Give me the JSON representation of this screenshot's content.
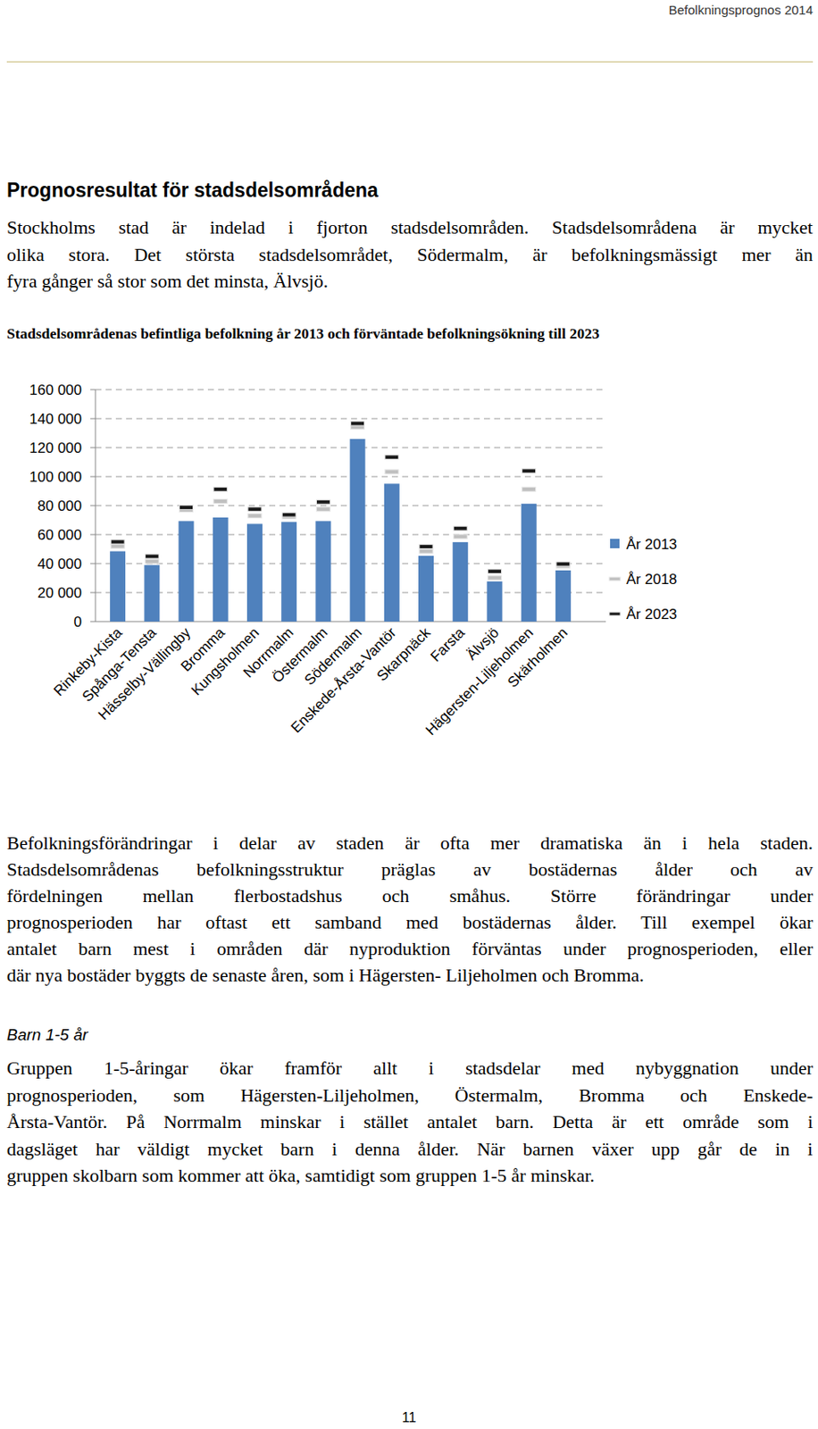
{
  "page": {
    "running_header": "Befolkningsprognos 2014",
    "heading": "Prognosresultat för stadsdelsområdena",
    "intro": [
      "Stockholms stad är indelad i fjorton stadsdelsområden. Stadsdelsområdena är mycket",
      "olika stora. Det största stadsdelsområdet, Södermalm, är befolkningsmässigt mer än",
      "fyra gånger så stor som det minsta, Älvsjö."
    ],
    "paragraph": [
      "Befolkningsförändringar i delar av staden är ofta mer dramatiska än i hela staden.",
      "Stadsdelsområdenas befolkningsstruktur präglas av bostädernas ålder och av",
      "fördelningen mellan flerbostadshus och småhus. Större förändringar under",
      "prognosperioden har oftast ett samband med bostädernas ålder. Till exempel ökar",
      "antalet barn mest i områden där nyproduktion förväntas under prognosperioden, eller",
      "där nya bostäder byggts de senaste åren, som i Hägersten- Liljeholmen och Bromma."
    ],
    "subheading": "Barn 1-5 år",
    "subheading_text": [
      "Gruppen 1-5-åringar ökar framför allt i stadsdelar med nybyggnation under",
      "prognosperioden, som Hägersten-Liljeholmen, Östermalm, Bromma och Enskede-",
      "Årsta-Vantör. På Norrmalm minskar i stället antalet barn. Detta är ett område som i",
      "dagsläget har väldigt mycket barn i denna ålder. När barnen växer upp går de in i",
      "gruppen skolbarn som kommer att öka, samtidigt som gruppen 1-5 år minskar."
    ],
    "page_number": 11
  },
  "chart_data": {
    "type": "bar",
    "title": "Stadsdelsområdenas befintliga befolkning år 2013 och förväntade befolkningsökning till 2023",
    "categories": [
      "Rinkeby-Kista",
      "Spånga-Tensta",
      "Hässelby-Vällingby",
      "Bromma",
      "Kungsholmen",
      "Norrmalm",
      "Östermalm",
      "Södermalm",
      "Enskede-Årsta-Vantör",
      "Skarpnäck",
      "Farsta",
      "Älvsjö",
      "Hägersten-Liljeholmen",
      "Skärholmen"
    ],
    "series": [
      {
        "name": "År 2013",
        "type": "bar",
        "color": "#4f81bd",
        "values": [
          48500,
          39000,
          69300,
          71800,
          67400,
          68700,
          69300,
          126000,
          95100,
          45400,
          54800,
          27700,
          81300,
          35300
        ]
      },
      {
        "name": "År 2018",
        "type": "scatter",
        "marker": "dash",
        "color": "#bfbfbf",
        "values": [
          52000,
          41500,
          77000,
          83000,
          73000,
          72400,
          77500,
          134200,
          103300,
          48500,
          58600,
          30200,
          91300,
          38400
        ]
      },
      {
        "name": "År 2023",
        "type": "scatter",
        "marker": "dash",
        "color": "#1a1a1a",
        "values": [
          55000,
          45000,
          78700,
          91300,
          77500,
          73700,
          82500,
          136700,
          113400,
          51700,
          64300,
          34600,
          103900,
          39700
        ]
      }
    ],
    "ylim": [
      0,
      160000
    ],
    "yticks": [
      0,
      {
        "value": 20000,
        "label": "20 000"
      },
      {
        "value": 40000,
        "label": "40 000"
      },
      {
        "value": 60000,
        "label": "60 000"
      },
      {
        "value": 80000,
        "label": "80 000"
      },
      {
        "value": 100000,
        "label": "100 000"
      },
      {
        "value": 120000,
        "label": "120 000"
      },
      {
        "value": 140000,
        "label": "140 000"
      },
      {
        "value": 160000,
        "label": "160 000"
      }
    ],
    "grid": true,
    "legend": "right"
  }
}
